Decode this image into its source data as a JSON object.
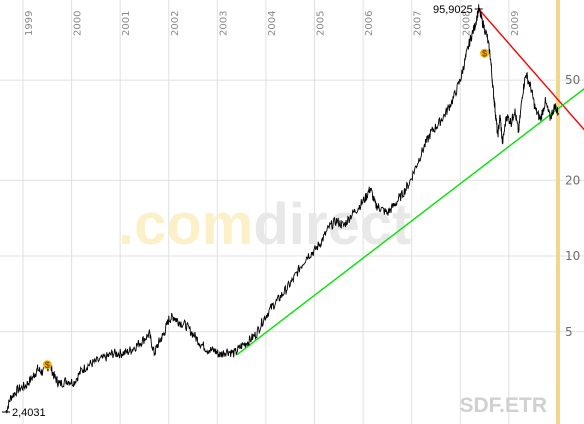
{
  "chart_data": {
    "type": "line",
    "x_range": [
      "1999",
      "2010"
    ],
    "y_scale": "log",
    "ylim": [
      2.2,
      110
    ],
    "y_ticks": [
      5,
      10,
      20,
      50
    ],
    "year_labels": [
      "1999",
      "2000",
      "2001",
      "2002",
      "2003",
      "2004",
      "2005",
      "2006",
      "2007",
      "2008",
      "2009"
    ],
    "max_label": "95,9025",
    "min_label": "2,4031",
    "ticker": "SDF.ETR",
    "watermark": {
      "part1": ".com",
      "part2": "direct"
    },
    "series": [
      {
        "values": [
          {
            "x": 1998.65,
            "y": 2.4
          },
          {
            "x": 1998.75,
            "y": 2.75
          },
          {
            "x": 1998.9,
            "y": 2.95
          },
          {
            "x": 1999.05,
            "y": 3.05
          },
          {
            "x": 1999.2,
            "y": 3.3
          },
          {
            "x": 1999.3,
            "y": 3.55
          },
          {
            "x": 1999.4,
            "y": 3.45
          },
          {
            "x": 1999.55,
            "y": 3.7
          },
          {
            "x": 1999.65,
            "y": 3.3
          },
          {
            "x": 1999.75,
            "y": 3.1
          },
          {
            "x": 1999.9,
            "y": 3.2
          },
          {
            "x": 2000.05,
            "y": 3.15
          },
          {
            "x": 2000.2,
            "y": 3.5
          },
          {
            "x": 2000.35,
            "y": 3.7
          },
          {
            "x": 2000.5,
            "y": 3.8
          },
          {
            "x": 2000.7,
            "y": 3.95
          },
          {
            "x": 2000.85,
            "y": 4.1
          },
          {
            "x": 2001.0,
            "y": 4.1
          },
          {
            "x": 2001.15,
            "y": 4.15
          },
          {
            "x": 2001.3,
            "y": 4.35
          },
          {
            "x": 2001.45,
            "y": 4.6
          },
          {
            "x": 2001.6,
            "y": 4.9
          },
          {
            "x": 2001.7,
            "y": 4.1
          },
          {
            "x": 2001.8,
            "y": 4.55
          },
          {
            "x": 2001.9,
            "y": 4.9
          },
          {
            "x": 2002.0,
            "y": 5.6
          },
          {
            "x": 2002.1,
            "y": 5.75
          },
          {
            "x": 2002.2,
            "y": 5.5
          },
          {
            "x": 2002.35,
            "y": 5.3
          },
          {
            "x": 2002.5,
            "y": 4.9
          },
          {
            "x": 2002.65,
            "y": 4.5
          },
          {
            "x": 2002.8,
            "y": 4.25
          },
          {
            "x": 2002.95,
            "y": 4.2
          },
          {
            "x": 2003.05,
            "y": 4.05
          },
          {
            "x": 2003.2,
            "y": 4.2
          },
          {
            "x": 2003.35,
            "y": 4.1
          },
          {
            "x": 2003.5,
            "y": 4.4
          },
          {
            "x": 2003.65,
            "y": 4.6
          },
          {
            "x": 2003.8,
            "y": 4.9
          },
          {
            "x": 2003.95,
            "y": 5.6
          },
          {
            "x": 2004.1,
            "y": 6.2
          },
          {
            "x": 2004.25,
            "y": 6.7
          },
          {
            "x": 2004.4,
            "y": 7.3
          },
          {
            "x": 2004.55,
            "y": 8.0
          },
          {
            "x": 2004.7,
            "y": 9.0
          },
          {
            "x": 2004.85,
            "y": 10.0
          },
          {
            "x": 2005.0,
            "y": 10.5
          },
          {
            "x": 2005.15,
            "y": 11.5
          },
          {
            "x": 2005.3,
            "y": 13.0
          },
          {
            "x": 2005.45,
            "y": 13.8
          },
          {
            "x": 2005.6,
            "y": 13.2
          },
          {
            "x": 2005.75,
            "y": 14.5
          },
          {
            "x": 2005.9,
            "y": 15.6
          },
          {
            "x": 2006.05,
            "y": 17.0
          },
          {
            "x": 2006.15,
            "y": 18.6
          },
          {
            "x": 2006.25,
            "y": 16.0
          },
          {
            "x": 2006.35,
            "y": 15.5
          },
          {
            "x": 2006.5,
            "y": 14.8
          },
          {
            "x": 2006.65,
            "y": 16.0
          },
          {
            "x": 2006.8,
            "y": 17.5
          },
          {
            "x": 2006.95,
            "y": 19.5
          },
          {
            "x": 2007.1,
            "y": 23.0
          },
          {
            "x": 2007.25,
            "y": 27.0
          },
          {
            "x": 2007.4,
            "y": 31.0
          },
          {
            "x": 2007.55,
            "y": 33.5
          },
          {
            "x": 2007.7,
            "y": 37.0
          },
          {
            "x": 2007.85,
            "y": 42.0
          },
          {
            "x": 2008.0,
            "y": 50.0
          },
          {
            "x": 2008.1,
            "y": 60.0
          },
          {
            "x": 2008.2,
            "y": 72.0
          },
          {
            "x": 2008.3,
            "y": 82.0
          },
          {
            "x": 2008.38,
            "y": 95.9
          },
          {
            "x": 2008.45,
            "y": 86.0
          },
          {
            "x": 2008.55,
            "y": 75.0
          },
          {
            "x": 2008.62,
            "y": 62.0
          },
          {
            "x": 2008.68,
            "y": 45.0
          },
          {
            "x": 2008.72,
            "y": 38.0
          },
          {
            "x": 2008.77,
            "y": 30.0
          },
          {
            "x": 2008.82,
            "y": 36.0
          },
          {
            "x": 2008.87,
            "y": 28.0
          },
          {
            "x": 2008.95,
            "y": 36.0
          },
          {
            "x": 2009.05,
            "y": 34.0
          },
          {
            "x": 2009.12,
            "y": 38.0
          },
          {
            "x": 2009.2,
            "y": 31.0
          },
          {
            "x": 2009.28,
            "y": 44.0
          },
          {
            "x": 2009.35,
            "y": 53.0
          },
          {
            "x": 2009.45,
            "y": 47.0
          },
          {
            "x": 2009.55,
            "y": 38.0
          },
          {
            "x": 2009.65,
            "y": 35.0
          },
          {
            "x": 2009.75,
            "y": 41.0
          },
          {
            "x": 2009.85,
            "y": 35.5
          },
          {
            "x": 2009.95,
            "y": 39.5
          },
          {
            "x": 2010.02,
            "y": 37.0
          }
        ]
      }
    ],
    "trendlines": [
      {
        "color": "#ff0000",
        "from": {
          "x": 2008.38,
          "y": 95.9
        },
        "to": {
          "x": 2010.6,
          "y": 31.0
        }
      },
      {
        "color": "#00e400",
        "from": {
          "x": 2003.4,
          "y": 4.05
        },
        "to": {
          "x": 2010.6,
          "y": 47.0
        }
      }
    ],
    "dividend_markers": [
      {
        "x": 1999.5,
        "y": 3.7,
        "symbol": "$"
      },
      {
        "x": 2008.5,
        "y": 64.0,
        "symbol": "$"
      }
    ],
    "colors": {
      "line": "#000000",
      "grid": "#e0e0e0",
      "right_band": "#f2d78a",
      "watermark_part1": "#fbf0c7",
      "watermark_part2": "#e8e8e8",
      "marker": "#f4b400"
    }
  }
}
